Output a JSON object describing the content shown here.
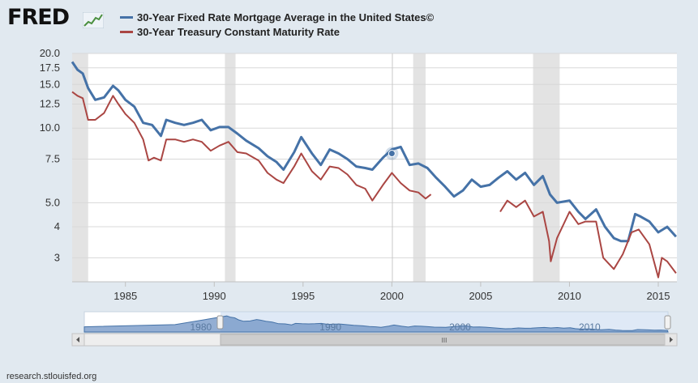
{
  "logo": {
    "text": "FRED",
    "mark": "® line-chart-mark"
  },
  "legend": [
    {
      "label": "30-Year Fixed Rate Mortgage Average in the United States©",
      "color": "#4572a7"
    },
    {
      "label": "30-Year Treasury Constant Maturity Rate",
      "color": "#aa4643"
    }
  ],
  "footer": {
    "source": "research.stlouisfed.org"
  },
  "navigator": {
    "labels": [
      "1980",
      "1990",
      "2000",
      "2010"
    ],
    "scroll_grip": "III"
  },
  "chart_data": {
    "type": "line",
    "y_scale": "log",
    "ylim": [
      2.4,
      20
    ],
    "xlim": [
      1982.0,
      2016.05
    ],
    "y_ticks": [
      "20.0",
      "17.5",
      "15.0",
      "12.5",
      "10.0",
      "7.5",
      "5.0",
      "4",
      "3"
    ],
    "y_tick_values": [
      20,
      17.5,
      15,
      12.5,
      10,
      7.5,
      5,
      4,
      3
    ],
    "x_ticks": [
      "1985",
      "1990",
      "1995",
      "2000",
      "2005",
      "2010",
      "2015"
    ],
    "x_tick_values": [
      1985,
      1990,
      1995,
      2000,
      2005,
      2010,
      2015
    ],
    "grid": true,
    "recessions": [
      [
        1982.0,
        1982.9
      ],
      [
        1990.6,
        1991.2
      ],
      [
        2001.2,
        2001.9
      ],
      [
        2007.95,
        2009.45
      ]
    ],
    "highlight_point": {
      "x": 2000.0,
      "y": 7.9
    },
    "series": [
      {
        "name": "30-Year Fixed Rate Mortgage Average in the United States©",
        "color": "#4572a7",
        "x": [
          1982.0,
          1982.3,
          1982.6,
          1982.9,
          1983.3,
          1983.8,
          1984.3,
          1984.6,
          1985.0,
          1985.5,
          1986.0,
          1986.5,
          1987.0,
          1987.3,
          1987.8,
          1988.3,
          1988.8,
          1989.3,
          1989.8,
          1990.3,
          1990.8,
          1991.3,
          1991.8,
          1992.5,
          1993.0,
          1993.5,
          1993.9,
          1994.5,
          1994.9,
          1995.5,
          1996.0,
          1996.5,
          1997.0,
          1997.5,
          1998.0,
          1998.5,
          1998.9,
          1999.5,
          2000.0,
          2000.5,
          2001.0,
          2001.5,
          2002.0,
          2002.5,
          2003.0,
          2003.5,
          2004.0,
          2004.5,
          2005.0,
          2005.5,
          2006.0,
          2006.5,
          2007.0,
          2007.5,
          2008.0,
          2008.5,
          2008.9,
          2009.3,
          2010.0,
          2010.5,
          2010.9,
          2011.5,
          2012.0,
          2012.5,
          2012.9,
          2013.3,
          2013.7,
          2014.0,
          2014.5,
          2015.0,
          2015.5,
          2016.0
        ],
        "y": [
          18.5,
          17.2,
          16.6,
          14.5,
          13.0,
          13.3,
          14.8,
          14.2,
          13.0,
          12.2,
          10.5,
          10.3,
          9.3,
          10.8,
          10.5,
          10.3,
          10.5,
          10.8,
          9.8,
          10.1,
          10.1,
          9.5,
          8.9,
          8.3,
          7.7,
          7.3,
          6.8,
          8.0,
          9.2,
          7.9,
          7.1,
          8.2,
          7.9,
          7.5,
          7.0,
          6.9,
          6.8,
          7.6,
          8.2,
          8.4,
          7.1,
          7.2,
          6.9,
          6.3,
          5.8,
          5.3,
          5.6,
          6.2,
          5.8,
          5.9,
          6.3,
          6.7,
          6.2,
          6.6,
          5.9,
          6.4,
          5.4,
          5.0,
          5.1,
          4.6,
          4.3,
          4.7,
          4.0,
          3.6,
          3.5,
          3.5,
          4.5,
          4.4,
          4.2,
          3.8,
          4.0,
          3.65
        ]
      },
      {
        "name": "30-Year Treasury Constant Maturity Rate",
        "color": "#aa4643",
        "x": [
          1982.0,
          1982.3,
          1982.6,
          1982.9,
          1983.3,
          1983.8,
          1984.3,
          1984.6,
          1985.0,
          1985.5,
          1986.0,
          1986.3,
          1986.6,
          1987.0,
          1987.3,
          1987.8,
          1988.3,
          1988.8,
          1989.3,
          1989.8,
          1990.3,
          1990.8,
          1991.3,
          1991.8,
          1992.5,
          1993.0,
          1993.5,
          1993.9,
          1994.5,
          1994.9,
          1995.5,
          1996.0,
          1996.5,
          1997.0,
          1997.5,
          1998.0,
          1998.5,
          1998.9,
          1999.5,
          2000.0,
          2000.5,
          2001.0,
          2001.5,
          2001.9,
          2002.2,
          null,
          2006.1,
          2006.5,
          2007.0,
          2007.5,
          2008.0,
          2008.5,
          2008.85,
          2008.95,
          2009.3,
          2010.0,
          2010.5,
          2010.9,
          2011.5,
          2011.9,
          2012.5,
          2013.0,
          2013.5,
          2013.9,
          2014.5,
          2015.0,
          2015.2,
          2015.5,
          2016.0
        ],
        "y": [
          14.0,
          13.5,
          13.2,
          10.8,
          10.8,
          11.5,
          13.5,
          12.5,
          11.4,
          10.5,
          9.0,
          7.4,
          7.6,
          7.4,
          9.0,
          9.0,
          8.8,
          9.0,
          8.8,
          8.1,
          8.5,
          8.8,
          8.0,
          7.9,
          7.4,
          6.6,
          6.2,
          6.0,
          7.0,
          7.9,
          6.7,
          6.2,
          7.0,
          6.9,
          6.5,
          5.9,
          5.7,
          5.1,
          5.9,
          6.6,
          6.0,
          5.6,
          5.5,
          5.2,
          5.4,
          null,
          4.6,
          5.1,
          4.8,
          5.1,
          4.4,
          4.6,
          3.5,
          2.9,
          3.6,
          4.6,
          4.1,
          4.2,
          4.2,
          3.0,
          2.7,
          3.1,
          3.8,
          3.9,
          3.4,
          2.5,
          3.0,
          2.9,
          2.6
        ]
      }
    ]
  }
}
